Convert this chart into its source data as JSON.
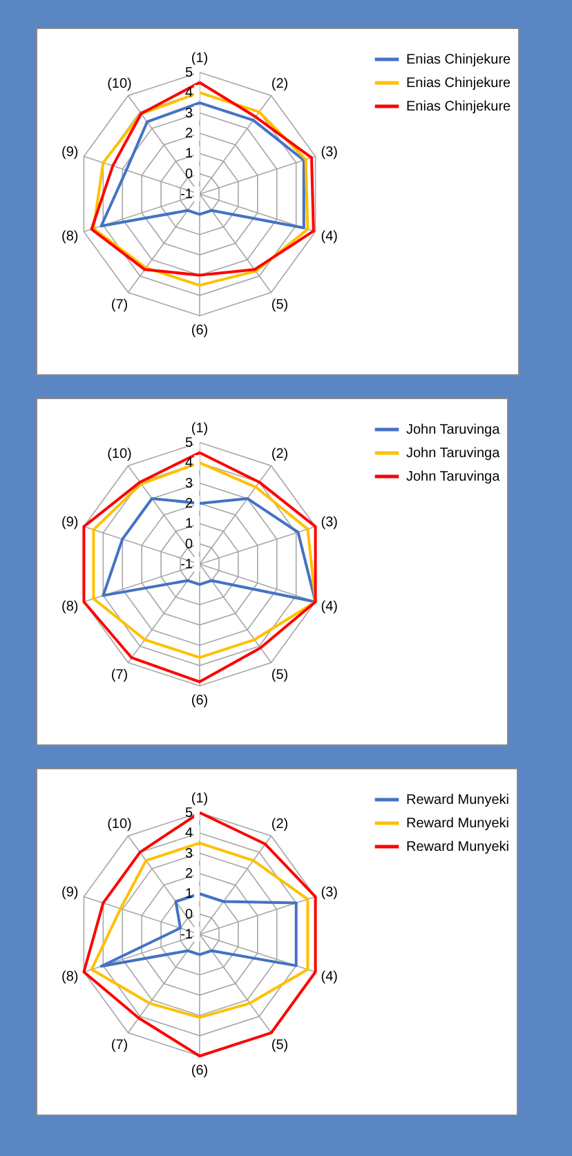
{
  "chart_data": [
    {
      "type": "radar",
      "categories": [
        "(1)",
        "(2)",
        "(3)",
        "(4)",
        "(5)",
        "(6)",
        "(7)",
        "(8)",
        "(9)",
        "(10)"
      ],
      "ylim": [
        -1,
        5
      ],
      "yticks": [
        -1,
        0,
        1,
        2,
        3,
        4,
        5
      ],
      "grid": true,
      "legend": "right",
      "series": [
        {
          "name": "Enias Chinjekure",
          "color": "#4472c4",
          "values": [
            3.5,
            3.5,
            4.4,
            4.4,
            0,
            0,
            0,
            4.1,
            2.8,
            3.4
          ]
        },
        {
          "name": "Enias Chinjekure",
          "color": "#ffc000",
          "values": [
            4,
            4,
            4.5,
            4.6,
            3.7,
            3.5,
            3.5,
            4.5,
            4,
            3.9
          ]
        },
        {
          "name": "Enias Chinjekure",
          "color": "#ff0000",
          "values": [
            4.5,
            3.7,
            4.8,
            4.9,
            3.6,
            3,
            3.6,
            4.6,
            3.5,
            3.9
          ]
        }
      ]
    },
    {
      "type": "radar",
      "categories": [
        "(1)",
        "(2)",
        "(3)",
        "(4)",
        "(5)",
        "(6)",
        "(7)",
        "(8)",
        "(9)",
        "(10)"
      ],
      "ylim": [
        -1,
        5
      ],
      "yticks": [
        -1,
        0,
        1,
        2,
        3,
        4,
        5
      ],
      "grid": true,
      "legend": "right",
      "series": [
        {
          "name": "John Taruvinga",
          "color": "#4472c4",
          "values": [
            2,
            3,
            4.1,
            5,
            0,
            0,
            0,
            4,
            3,
            3
          ]
        },
        {
          "name": "John Taruvinga",
          "color": "#ffc000",
          "values": [
            4,
            3.7,
            4.6,
            5,
            3.6,
            3.6,
            3.6,
            4.5,
            4.5,
            3.9
          ]
        },
        {
          "name": "John Taruvinga",
          "color": "#ff0000",
          "values": [
            4.5,
            4,
            5,
            5,
            4.1,
            4.8,
            4.7,
            5,
            5,
            4
          ]
        }
      ]
    },
    {
      "type": "radar",
      "categories": [
        "(1)",
        "(2)",
        "(3)",
        "(4)",
        "(5)",
        "(6)",
        "(7)",
        "(8)",
        "(9)",
        "(10)"
      ],
      "ylim": [
        -1,
        5
      ],
      "yticks": [
        -1,
        0,
        1,
        2,
        3,
        4,
        5
      ],
      "grid": true,
      "legend": "right",
      "series": [
        {
          "name": "Reward Munyeki",
          "color": "#4472c4",
          "values": [
            1,
            1,
            4,
            4,
            0,
            0,
            0,
            4.1,
            0,
            1
          ]
        },
        {
          "name": "Reward Munyeki",
          "color": "#ffc000",
          "values": [
            3.5,
            3.5,
            4.6,
            4.6,
            3.2,
            3.1,
            3.2,
            4.6,
            3.1,
            3.5
          ]
        },
        {
          "name": "Reward Munyeki",
          "color": "#ff0000",
          "values": [
            5,
            4.5,
            5,
            5,
            5,
            5,
            4.1,
            5,
            4,
            4
          ]
        }
      ]
    }
  ]
}
